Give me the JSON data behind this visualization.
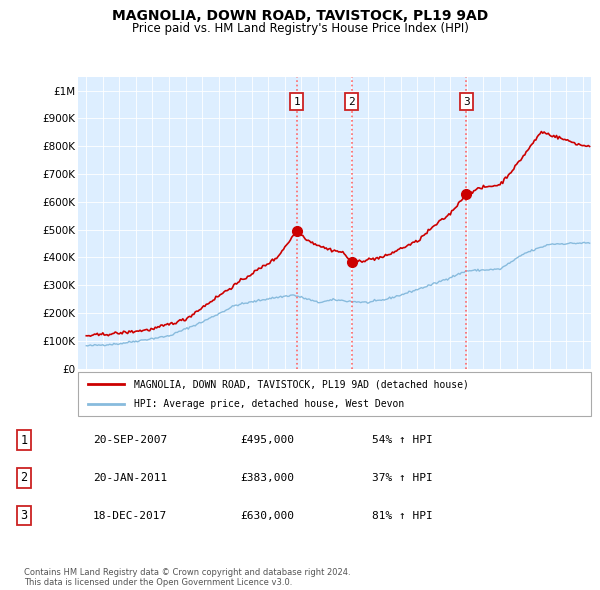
{
  "title": "MAGNOLIA, DOWN ROAD, TAVISTOCK, PL19 9AD",
  "subtitle": "Price paid vs. HM Land Registry's House Price Index (HPI)",
  "footer1": "Contains HM Land Registry data © Crown copyright and database right 2024.",
  "footer2": "This data is licensed under the Open Government Licence v3.0.",
  "legend_label_red": "MAGNOLIA, DOWN ROAD, TAVISTOCK, PL19 9AD (detached house)",
  "legend_label_blue": "HPI: Average price, detached house, West Devon",
  "transactions": [
    {
      "num": 1,
      "date": "20-SEP-2007",
      "price": 495000,
      "hpi_pct": "54%",
      "x": 2007.72
    },
    {
      "num": 2,
      "date": "20-JAN-2011",
      "price": 383000,
      "hpi_pct": "37%",
      "x": 2011.05
    },
    {
      "num": 3,
      "date": "18-DEC-2017",
      "price": 630000,
      "hpi_pct": "81%",
      "x": 2017.96
    }
  ],
  "vline_color": "#ff6666",
  "vline_style": ":",
  "dot_color_red": "#cc0000",
  "line_color_red": "#cc0000",
  "line_color_blue": "#88bbdd",
  "background_chart": "#ddeeff",
  "background_fig": "#ffffff",
  "ylim": [
    0,
    1050000
  ],
  "xlim": [
    1994.5,
    2025.5
  ],
  "yticks": [
    0,
    100000,
    200000,
    300000,
    400000,
    500000,
    600000,
    700000,
    800000,
    900000,
    1000000
  ],
  "ytick_labels": [
    "£0",
    "£100K",
    "£200K",
    "£300K",
    "£400K",
    "£500K",
    "£600K",
    "£700K",
    "£800K",
    "£900K",
    "£1M"
  ],
  "xticks": [
    1995,
    1996,
    1997,
    1998,
    1999,
    2000,
    2001,
    2002,
    2003,
    2004,
    2005,
    2006,
    2007,
    2008,
    2009,
    2010,
    2011,
    2012,
    2013,
    2014,
    2015,
    2016,
    2017,
    2018,
    2019,
    2020,
    2021,
    2022,
    2023,
    2024,
    2025
  ],
  "num_box_color": "#cc2222",
  "table_border_color": "#aaaaaa",
  "legend_border_color": "#aaaaaa"
}
